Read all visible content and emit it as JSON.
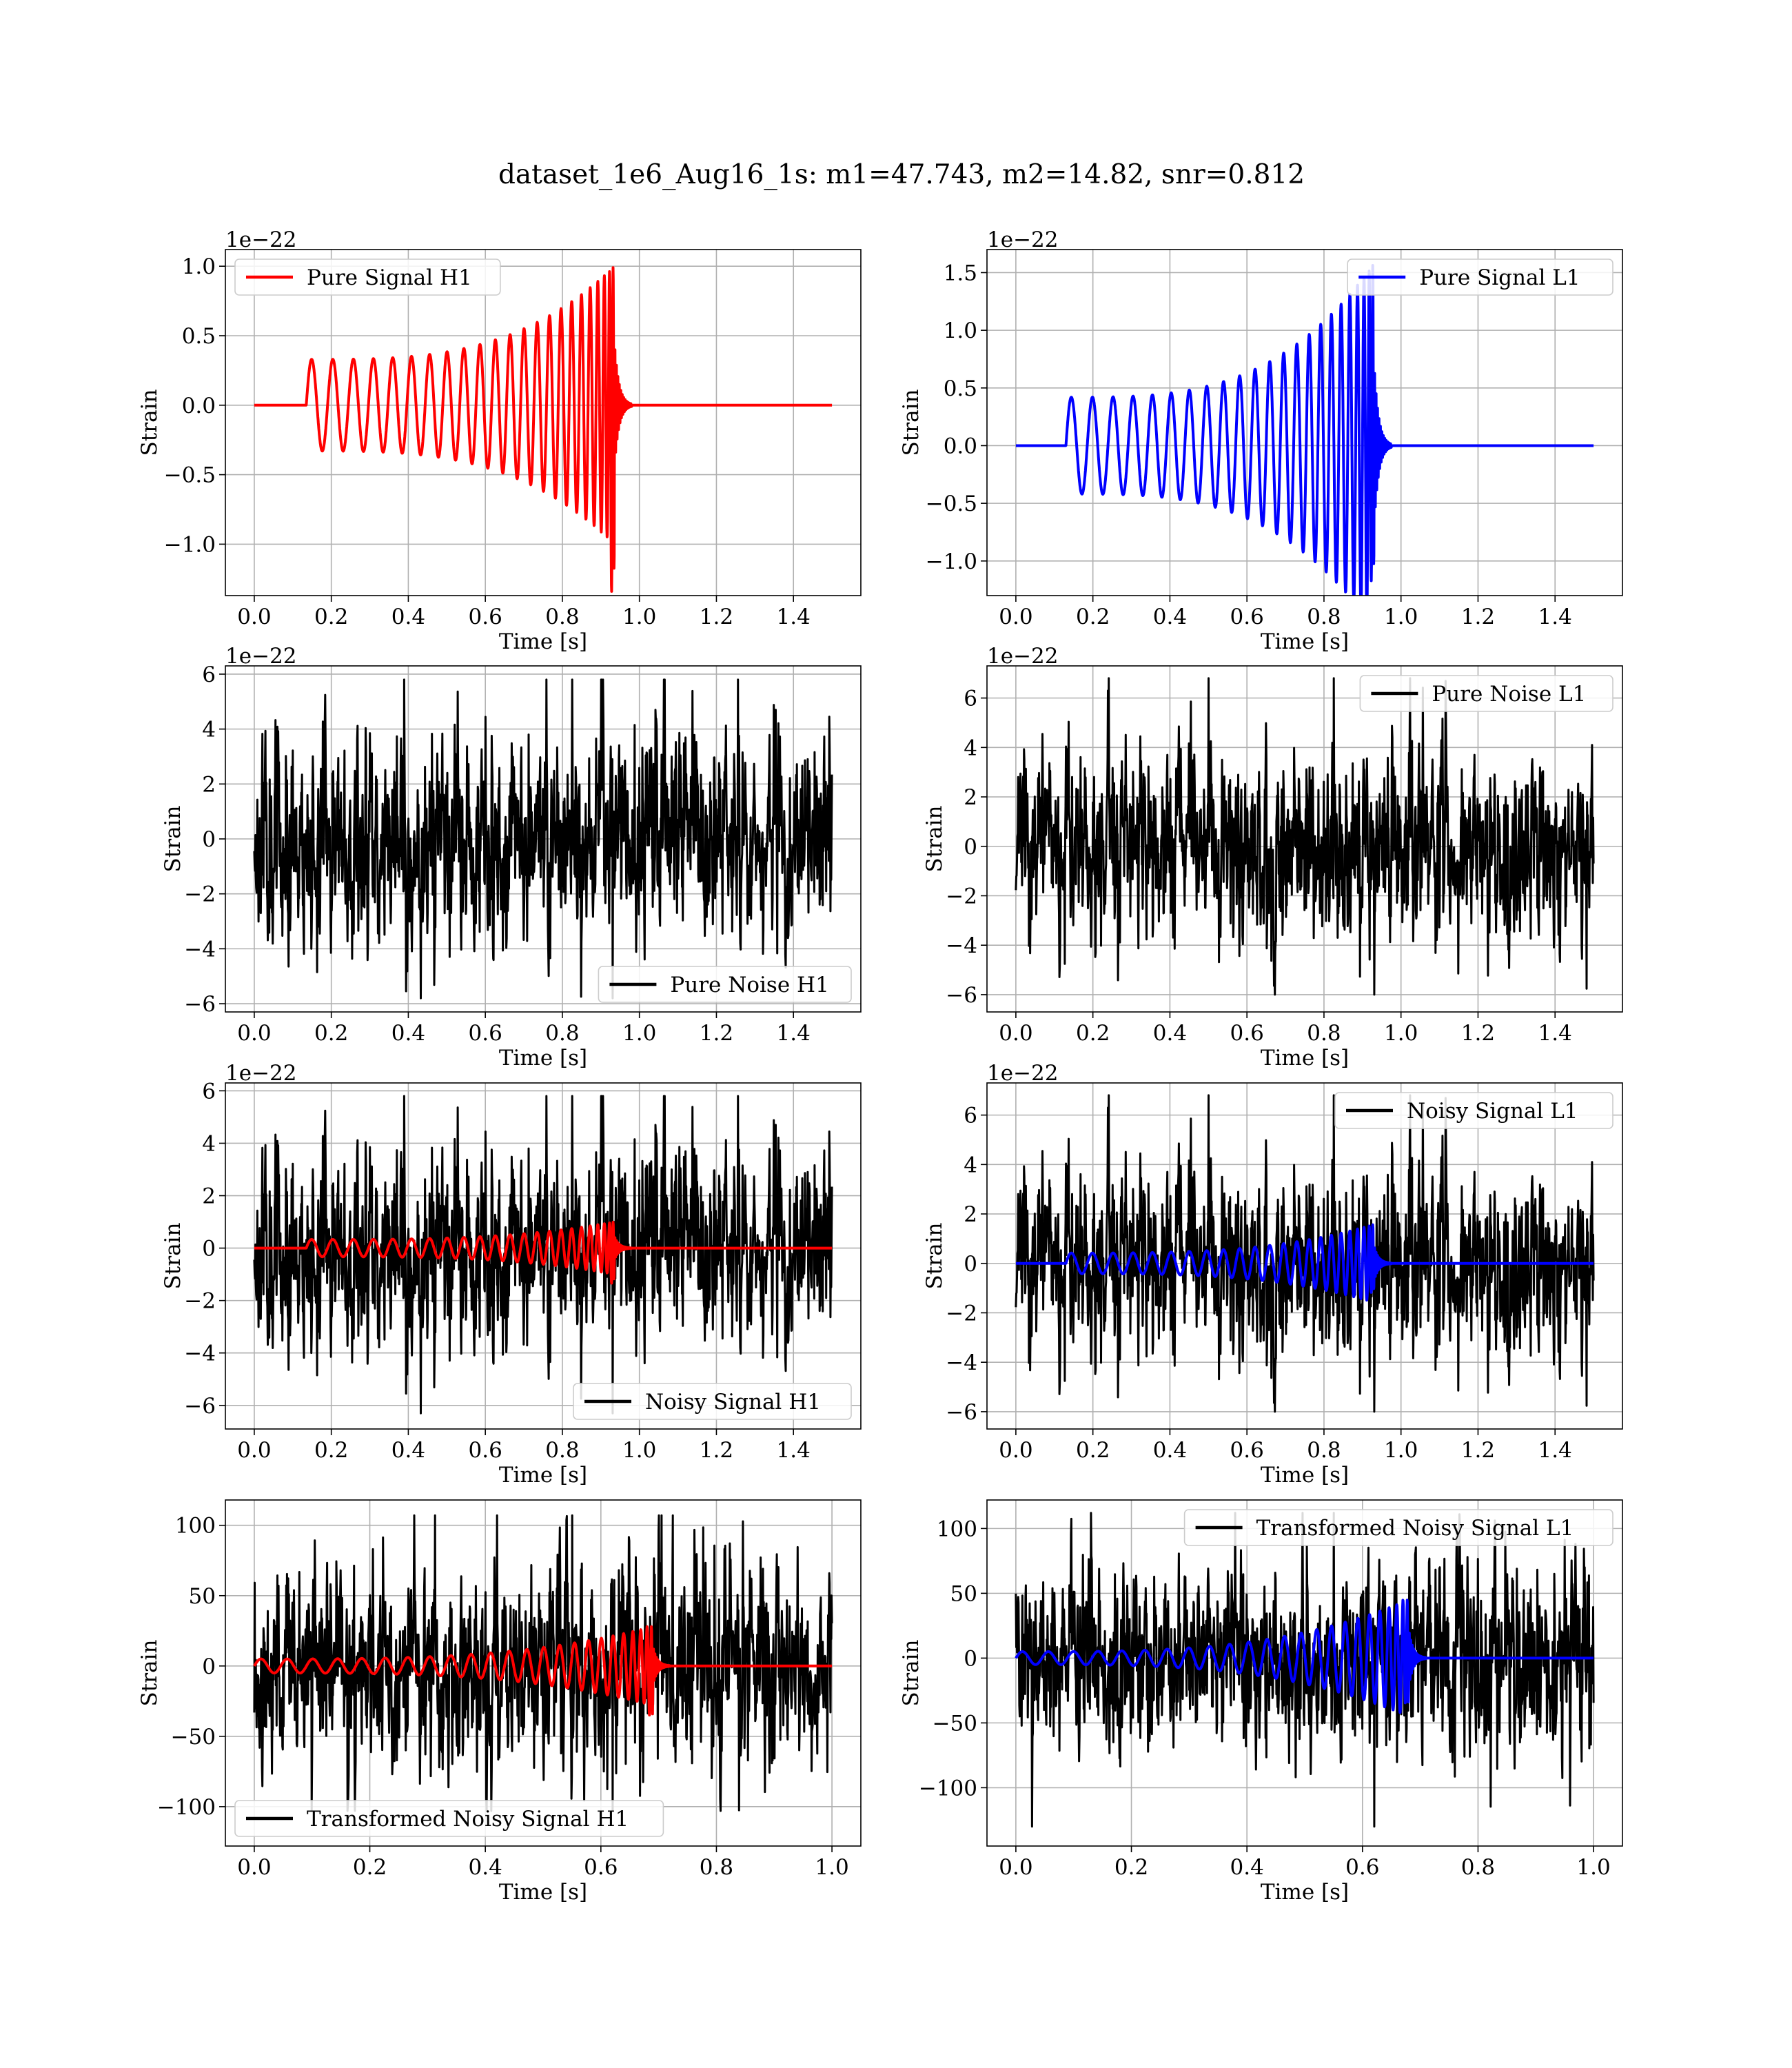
{
  "figure": {
    "title": "dataset_1e6_Aug16_1s: m1=47.743, m2=14.82, snr=0.812"
  },
  "colors": {
    "h1": "#ff0000",
    "l1": "#0000ff",
    "noise": "#000000",
    "frame": "#000000",
    "grid": "#b0b0b0"
  },
  "chart_data": [
    {
      "id": "pure-signal-h1",
      "type": "line",
      "xlabel": "Time [s]",
      "ylabel": "Strain",
      "offset_text": "1e−22",
      "xlim": [
        -0.075,
        1.575
      ],
      "ylim": [
        -1.37,
        1.12
      ],
      "xticks": [
        0.0,
        0.2,
        0.4,
        0.6,
        0.8,
        1.0,
        1.2,
        1.4
      ],
      "xtick_labels": [
        "0.0",
        "0.2",
        "0.4",
        "0.6",
        "0.8",
        "1.0",
        "1.2",
        "1.4"
      ],
      "yticks": [
        -1.0,
        -0.5,
        0.0,
        0.5,
        1.0
      ],
      "ytick_labels": [
        "−1.0",
        "−0.5",
        "0.0",
        "0.5",
        "1.0"
      ],
      "legend": {
        "position": "upper left",
        "entries": [
          {
            "label": "Pure Signal H1",
            "color": "#ff0000"
          }
        ]
      },
      "series": [
        {
          "name": "Pure Signal H1",
          "color": "#ff0000",
          "kind": "chirp",
          "x_range": [
            0.0,
            1.5
          ],
          "start": 0.135,
          "merger": 0.935,
          "amp_start": 0.33,
          "amp_peak": 1.0,
          "amp_neg_peak": -1.35,
          "cycles": 23
        }
      ]
    },
    {
      "id": "pure-signal-l1",
      "type": "line",
      "xlabel": "Time [s]",
      "ylabel": "Strain",
      "offset_text": "1e−22",
      "xlim": [
        -0.075,
        1.575
      ],
      "ylim": [
        -1.3,
        1.7
      ],
      "xticks": [
        0.0,
        0.2,
        0.4,
        0.6,
        0.8,
        1.0,
        1.2,
        1.4
      ],
      "xtick_labels": [
        "0.0",
        "0.2",
        "0.4",
        "0.6",
        "0.8",
        "1.0",
        "1.2",
        "1.4"
      ],
      "yticks": [
        -1.0,
        -0.5,
        0.0,
        0.5,
        1.0,
        1.5
      ],
      "ytick_labels": [
        "−1.0",
        "−0.5",
        "0.0",
        "0.5",
        "1.0",
        "1.5"
      ],
      "legend": {
        "position": "upper right",
        "entries": [
          {
            "label": "Pure Signal L1",
            "color": "#0000ff"
          }
        ]
      },
      "series": [
        {
          "name": "Pure Signal L1",
          "color": "#0000ff",
          "kind": "chirp",
          "x_range": [
            0.0,
            1.5
          ],
          "start": 0.13,
          "merger": 0.93,
          "amp_start": 0.42,
          "amp_peak": 1.58,
          "amp_neg_peak": -1.18,
          "cycles": 23
        }
      ]
    },
    {
      "id": "pure-noise-h1",
      "type": "line",
      "xlabel": "Time [s]",
      "ylabel": "Strain",
      "offset_text": "1e−22",
      "xlim": [
        -0.075,
        1.575
      ],
      "ylim": [
        -6.3,
        6.3
      ],
      "xticks": [
        0.0,
        0.2,
        0.4,
        0.6,
        0.8,
        1.0,
        1.2,
        1.4
      ],
      "xtick_labels": [
        "0.0",
        "0.2",
        "0.4",
        "0.6",
        "0.8",
        "1.0",
        "1.2",
        "1.4"
      ],
      "yticks": [
        -6,
        -4,
        -2,
        0,
        2,
        4,
        6
      ],
      "ytick_labels": [
        "−6",
        "−4",
        "−2",
        "0",
        "2",
        "4",
        "6"
      ],
      "legend": {
        "position": "lower right",
        "entries": [
          {
            "label": "Pure Noise H1",
            "color": "#000000"
          }
        ]
      },
      "series": [
        {
          "name": "Pure Noise H1",
          "color": "#000000",
          "kind": "noise",
          "x_range": [
            0.0,
            1.5
          ],
          "sigma": 1.6,
          "max": 5.8,
          "min": -5.8,
          "seed": 11
        }
      ]
    },
    {
      "id": "pure-noise-l1",
      "type": "line",
      "xlabel": "Time [s]",
      "ylabel": "Strain",
      "offset_text": "1e−22",
      "xlim": [
        -0.075,
        1.575
      ],
      "ylim": [
        -6.7,
        7.3
      ],
      "xticks": [
        0.0,
        0.2,
        0.4,
        0.6,
        0.8,
        1.0,
        1.2,
        1.4
      ],
      "xtick_labels": [
        "0.0",
        "0.2",
        "0.4",
        "0.6",
        "0.8",
        "1.0",
        "1.2",
        "1.4"
      ],
      "yticks": [
        -6,
        -4,
        -2,
        0,
        2,
        4,
        6
      ],
      "ytick_labels": [
        "−6",
        "−4",
        "−2",
        "0",
        "2",
        "4",
        "6"
      ],
      "legend": {
        "position": "upper right",
        "entries": [
          {
            "label": "Pure Noise L1",
            "color": "#000000"
          }
        ]
      },
      "series": [
        {
          "name": "Pure Noise L1",
          "color": "#000000",
          "kind": "noise",
          "x_range": [
            0.0,
            1.5
          ],
          "sigma": 1.6,
          "max": 6.8,
          "min": -6.0,
          "seed": 23
        }
      ]
    },
    {
      "id": "noisy-signal-h1",
      "type": "line",
      "xlabel": "Time [s]",
      "ylabel": "Strain",
      "offset_text": "1e−22",
      "xlim": [
        -0.075,
        1.575
      ],
      "ylim": [
        -6.9,
        6.3
      ],
      "xticks": [
        0.0,
        0.2,
        0.4,
        0.6,
        0.8,
        1.0,
        1.2,
        1.4
      ],
      "xtick_labels": [
        "0.0",
        "0.2",
        "0.4",
        "0.6",
        "0.8",
        "1.0",
        "1.2",
        "1.4"
      ],
      "yticks": [
        -6,
        -4,
        -2,
        0,
        2,
        4,
        6
      ],
      "ytick_labels": [
        "−6",
        "−4",
        "−2",
        "0",
        "2",
        "4",
        "6"
      ],
      "legend": {
        "position": "lower right",
        "entries": [
          {
            "label": "Noisy Signal H1",
            "color": "#000000"
          }
        ]
      },
      "series": [
        {
          "name": "Noisy Signal H1",
          "color": "#000000",
          "kind": "noise",
          "x_range": [
            0.0,
            1.5
          ],
          "sigma": 1.6,
          "max": 5.8,
          "min": -6.3,
          "seed": 11
        },
        {
          "color": "#ff0000",
          "kind": "chirp",
          "x_range": [
            0.0,
            1.5
          ],
          "start": 0.135,
          "merger": 0.935,
          "amp_start": 0.33,
          "amp_peak": 1.0,
          "amp_neg_peak": -1.35,
          "cycles": 23
        }
      ]
    },
    {
      "id": "noisy-signal-l1",
      "type": "line",
      "xlabel": "Time [s]",
      "ylabel": "Strain",
      "offset_text": "1e−22",
      "xlim": [
        -0.075,
        1.575
      ],
      "ylim": [
        -6.7,
        7.3
      ],
      "xticks": [
        0.0,
        0.2,
        0.4,
        0.6,
        0.8,
        1.0,
        1.2,
        1.4
      ],
      "xtick_labels": [
        "0.0",
        "0.2",
        "0.4",
        "0.6",
        "0.8",
        "1.0",
        "1.2",
        "1.4"
      ],
      "yticks": [
        -6,
        -4,
        -2,
        0,
        2,
        4,
        6
      ],
      "ytick_labels": [
        "−6",
        "−4",
        "−2",
        "0",
        "2",
        "4",
        "6"
      ],
      "legend": {
        "position": "upper right",
        "entries": [
          {
            "label": "Noisy Signal L1",
            "color": "#000000"
          }
        ]
      },
      "series": [
        {
          "name": "Noisy Signal L1",
          "color": "#000000",
          "kind": "noise",
          "x_range": [
            0.0,
            1.5
          ],
          "sigma": 1.6,
          "max": 6.8,
          "min": -6.0,
          "seed": 23
        },
        {
          "color": "#0000ff",
          "kind": "chirp",
          "x_range": [
            0.0,
            1.5
          ],
          "start": 0.13,
          "merger": 0.93,
          "amp_start": 0.42,
          "amp_peak": 1.58,
          "amp_neg_peak": -1.18,
          "cycles": 23
        }
      ]
    },
    {
      "id": "transformed-noisy-signal-h1",
      "type": "line",
      "xlabel": "Time [s]",
      "ylabel": "Strain",
      "offset_text": "",
      "xlim": [
        -0.05,
        1.05
      ],
      "ylim": [
        -128,
        118
      ],
      "xticks": [
        0.0,
        0.2,
        0.4,
        0.6,
        0.8,
        1.0
      ],
      "xtick_labels": [
        "0.0",
        "0.2",
        "0.4",
        "0.6",
        "0.8",
        "1.0"
      ],
      "yticks": [
        -100,
        -50,
        0,
        50,
        100
      ],
      "ytick_labels": [
        "−100",
        "−50",
        "0",
        "50",
        "100"
      ],
      "legend": {
        "position": "lower left",
        "entries": [
          {
            "label": "Transformed Noisy Signal H1",
            "color": "#000000"
          }
        ]
      },
      "series": [
        {
          "name": "Transformed Noisy Signal H1",
          "color": "#000000",
          "kind": "noise",
          "x_range": [
            0.0,
            1.0
          ],
          "sigma": 30,
          "max": 107,
          "min": -103,
          "seed": 37
        },
        {
          "color": "#ff0000",
          "kind": "chirp",
          "x_range": [
            0.0,
            1.0
          ],
          "start": 0.0,
          "merger": 0.69,
          "amp_start": 5,
          "amp_peak": 28,
          "amp_neg_peak": -35,
          "cycles": 24
        }
      ]
    },
    {
      "id": "transformed-noisy-signal-l1",
      "type": "line",
      "xlabel": "Time [s]",
      "ylabel": "Strain",
      "offset_text": "",
      "xlim": [
        -0.05,
        1.05
      ],
      "ylim": [
        -145,
        122
      ],
      "xticks": [
        0.0,
        0.2,
        0.4,
        0.6,
        0.8,
        1.0
      ],
      "xtick_labels": [
        "0.0",
        "0.2",
        "0.4",
        "0.6",
        "0.8",
        "1.0"
      ],
      "yticks": [
        -100,
        -50,
        0,
        50,
        100
      ],
      "ytick_labels": [
        "−100",
        "−50",
        "0",
        "50",
        "100"
      ],
      "legend": {
        "position": "upper right",
        "entries": [
          {
            "label": "Transformed Noisy Signal L1",
            "color": "#000000"
          }
        ]
      },
      "series": [
        {
          "name": "Transformed Noisy Signal L1",
          "color": "#000000",
          "kind": "noise",
          "x_range": [
            0.0,
            1.0
          ],
          "sigma": 30,
          "max": 112,
          "min": -130,
          "seed": 41
        },
        {
          "color": "#0000ff",
          "kind": "chirp",
          "x_range": [
            0.0,
            1.0
          ],
          "start": 0.0,
          "merger": 0.68,
          "amp_start": 5,
          "amp_peak": 45,
          "amp_neg_peak": -35,
          "cycles": 24
        }
      ]
    }
  ]
}
